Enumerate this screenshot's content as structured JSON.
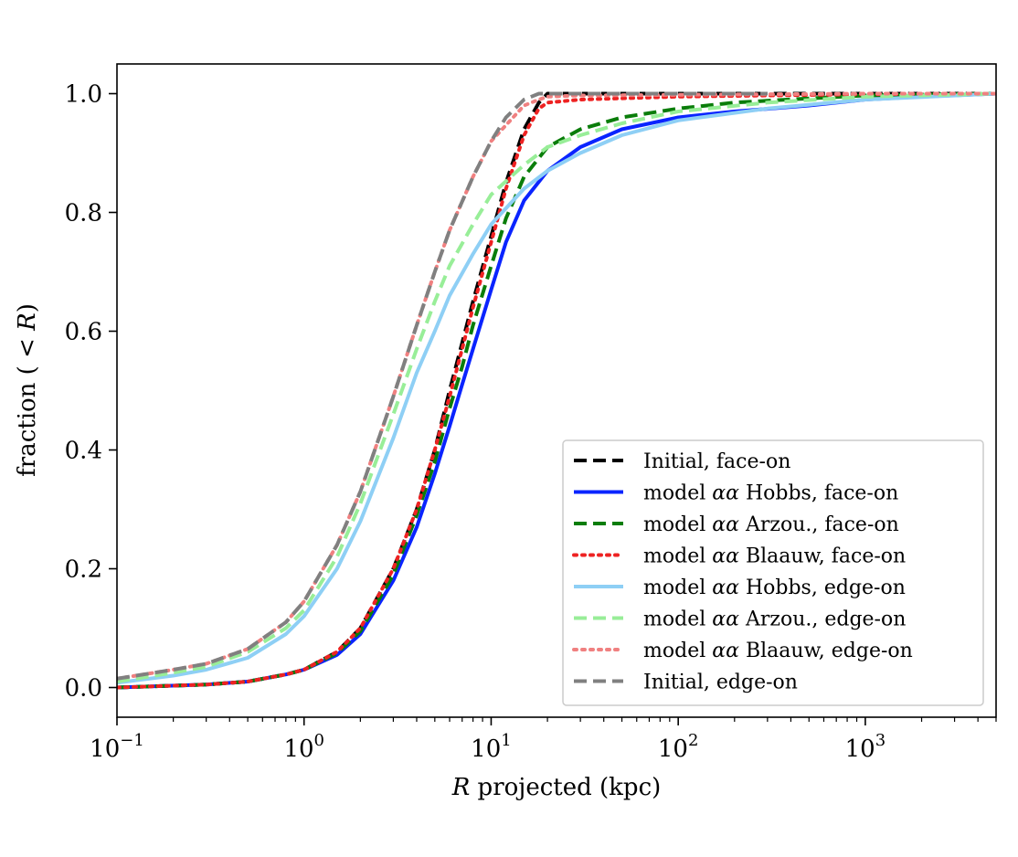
{
  "chart_data": {
    "type": "line",
    "title": "",
    "xlabel": "R projected (kpc)",
    "ylabel": "fraction ( < R)",
    "xscale": "log",
    "xlim": [
      0.1,
      5000
    ],
    "ylim": [
      -0.05,
      1.05
    ],
    "xticks": [
      {
        "value": 0.1,
        "base": "10",
        "exp": "−1"
      },
      {
        "value": 1,
        "base": "10",
        "exp": "0"
      },
      {
        "value": 10,
        "base": "10",
        "exp": "1"
      },
      {
        "value": 100,
        "base": "10",
        "exp": "2"
      },
      {
        "value": 1000,
        "base": "10",
        "exp": "3"
      }
    ],
    "yticks": [
      {
        "value": 0.0,
        "label": "0.0"
      },
      {
        "value": 0.2,
        "label": "0.2"
      },
      {
        "value": 0.4,
        "label": "0.4"
      },
      {
        "value": 0.6,
        "label": "0.6"
      },
      {
        "value": 0.8,
        "label": "0.8"
      },
      {
        "value": 1.0,
        "label": "1.0"
      }
    ],
    "grid": false,
    "legend_position": "lower-right",
    "series": [
      {
        "name": "Initial, face-on",
        "color": "#000000",
        "style": "dashed",
        "x": [
          0.1,
          0.3,
          0.5,
          0.8,
          1,
          1.5,
          2,
          3,
          4,
          5,
          6,
          7,
          8,
          10,
          12,
          15,
          18,
          20,
          30,
          100,
          300,
          1000,
          5000
        ],
        "y": [
          0.0,
          0.005,
          0.01,
          0.022,
          0.03,
          0.06,
          0.1,
          0.2,
          0.3,
          0.4,
          0.5,
          0.58,
          0.65,
          0.76,
          0.85,
          0.94,
          0.985,
          1.0,
          1.0,
          1.0,
          1.0,
          1.0,
          1.0
        ]
      },
      {
        "name": "model αα Hobbs, face-on",
        "color": "#0a24ff",
        "style": "solid",
        "x": [
          0.1,
          0.3,
          0.5,
          0.8,
          1,
          1.5,
          2,
          3,
          4,
          5,
          6,
          7,
          8,
          10,
          12,
          15,
          20,
          30,
          50,
          100,
          200,
          500,
          1000,
          2000,
          5000
        ],
        "y": [
          0.0,
          0.005,
          0.01,
          0.022,
          0.03,
          0.055,
          0.09,
          0.18,
          0.27,
          0.36,
          0.44,
          0.51,
          0.57,
          0.67,
          0.75,
          0.82,
          0.87,
          0.91,
          0.94,
          0.96,
          0.97,
          0.98,
          0.99,
          0.995,
          1.0
        ]
      },
      {
        "name": "model αα Arzou., face-on",
        "color": "#0a7d0a",
        "style": "dashed",
        "x": [
          0.1,
          0.3,
          0.5,
          0.8,
          1,
          1.5,
          2,
          3,
          4,
          5,
          6,
          7,
          8,
          10,
          12,
          15,
          20,
          30,
          50,
          100,
          200,
          500,
          1000,
          5000
        ],
        "y": [
          0.0,
          0.005,
          0.01,
          0.022,
          0.03,
          0.058,
          0.095,
          0.19,
          0.29,
          0.38,
          0.47,
          0.54,
          0.61,
          0.71,
          0.79,
          0.86,
          0.91,
          0.94,
          0.96,
          0.975,
          0.985,
          0.992,
          0.997,
          1.0
        ]
      },
      {
        "name": "model αα Blaauw, face-on",
        "color": "#ee2222",
        "style": "dotted",
        "x": [
          0.1,
          0.3,
          0.5,
          0.8,
          1,
          1.5,
          2,
          3,
          4,
          5,
          6,
          7,
          8,
          10,
          12,
          15,
          18,
          20,
          30,
          100,
          300,
          1000,
          5000
        ],
        "y": [
          0.0,
          0.005,
          0.01,
          0.022,
          0.03,
          0.06,
          0.1,
          0.2,
          0.3,
          0.4,
          0.49,
          0.57,
          0.64,
          0.75,
          0.84,
          0.93,
          0.975,
          0.985,
          0.99,
          0.995,
          0.997,
          0.999,
          1.0
        ]
      },
      {
        "name": "model αα Hobbs,  edge-on",
        "color": "#8ecff5",
        "style": "solid",
        "x": [
          0.1,
          0.2,
          0.3,
          0.5,
          0.8,
          1,
          1.5,
          2,
          3,
          4,
          5,
          6,
          8,
          10,
          15,
          20,
          30,
          50,
          100,
          300,
          1000,
          5000
        ],
        "y": [
          0.008,
          0.02,
          0.03,
          0.05,
          0.09,
          0.12,
          0.2,
          0.28,
          0.42,
          0.53,
          0.6,
          0.66,
          0.73,
          0.78,
          0.84,
          0.87,
          0.9,
          0.93,
          0.955,
          0.975,
          0.99,
          1.0
        ]
      },
      {
        "name": "model αα Arzou., edge-on",
        "color": "#98ee98",
        "style": "dashed",
        "x": [
          0.1,
          0.2,
          0.3,
          0.5,
          0.8,
          1,
          1.5,
          2,
          3,
          4,
          5,
          6,
          8,
          10,
          15,
          20,
          30,
          50,
          100,
          300,
          1000,
          5000
        ],
        "y": [
          0.01,
          0.025,
          0.035,
          0.06,
          0.1,
          0.13,
          0.22,
          0.31,
          0.46,
          0.57,
          0.65,
          0.71,
          0.78,
          0.83,
          0.88,
          0.91,
          0.93,
          0.95,
          0.97,
          0.985,
          0.995,
          1.0
        ]
      },
      {
        "name": "model αα Blaauw, edge-on",
        "color": "#f08080",
        "style": "dotted",
        "x": [
          0.1,
          0.2,
          0.3,
          0.5,
          0.8,
          1,
          1.5,
          2,
          3,
          4,
          5,
          6,
          8,
          10,
          15,
          18,
          20,
          30,
          100,
          300,
          1000,
          5000
        ],
        "y": [
          0.015,
          0.03,
          0.04,
          0.065,
          0.11,
          0.145,
          0.24,
          0.33,
          0.49,
          0.61,
          0.7,
          0.77,
          0.86,
          0.92,
          0.98,
          0.99,
          0.995,
          0.997,
          0.998,
          0.999,
          1.0,
          1.0
        ]
      },
      {
        "name": "Initial, edge-on",
        "color": "#808080",
        "style": "dashed",
        "x": [
          0.1,
          0.2,
          0.3,
          0.5,
          0.8,
          1,
          1.5,
          2,
          3,
          4,
          5,
          6,
          8,
          10,
          12,
          15,
          18,
          20,
          30,
          100,
          300
        ],
        "y": [
          0.015,
          0.03,
          0.04,
          0.065,
          0.11,
          0.145,
          0.24,
          0.33,
          0.49,
          0.61,
          0.7,
          0.77,
          0.86,
          0.92,
          0.96,
          0.99,
          1.0,
          1.0,
          1.0,
          1.0,
          1.0
        ]
      }
    ]
  }
}
